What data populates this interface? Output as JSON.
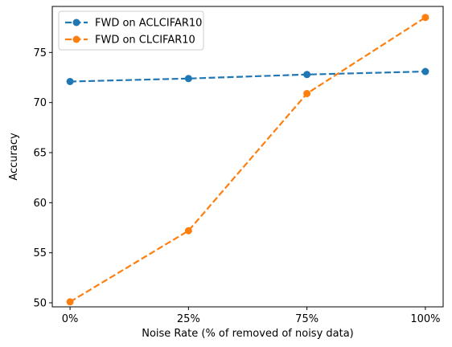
{
  "chart_data": {
    "type": "line",
    "categories": [
      "0%",
      "25%",
      "75%",
      "100%"
    ],
    "series": [
      {
        "name": "FWD on ACLCIFAR10",
        "values": [
          72.1,
          72.4,
          72.8,
          73.1
        ],
        "color": "#1f77b4"
      },
      {
        "name": "FWD on CLCIFAR10",
        "values": [
          50.1,
          57.2,
          70.9,
          78.5
        ],
        "color": "#ff7f0e"
      }
    ],
    "xlabel": "Noise Rate (% of removed of noisy data)",
    "ylabel": "Accuracy",
    "ylim": [
      49.6,
      79.6
    ],
    "yticks": [
      50,
      55,
      60,
      65,
      70,
      75
    ],
    "line_style": "dashed",
    "marker": "circle",
    "grid": false,
    "legend_position": "top-left"
  }
}
